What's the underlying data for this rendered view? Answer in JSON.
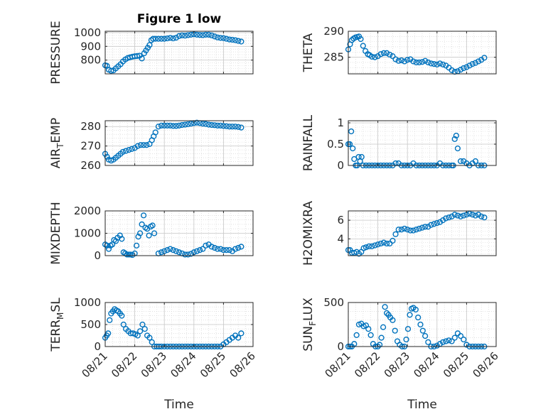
{
  "figure": {
    "title": "Figure 1 low",
    "x_tick_labels": [
      "08/21",
      "08/22",
      "08/23",
      "08/24",
      "08/25",
      "08/26"
    ],
    "xlabel": "Time",
    "marker_color": "#0072BD"
  },
  "chart_data": [
    {
      "type": "scatter",
      "title": "Figure 1 low",
      "ylabel": "PRESSURE",
      "ylabel_sub": "",
      "ylabel_tail": "",
      "xlim": [
        0,
        5
      ],
      "ylim": [
        700,
        1010
      ],
      "yticks": [
        800,
        900,
        1000
      ],
      "grid": true,
      "x": [
        0.0,
        0.06,
        0.12,
        0.2,
        0.28,
        0.36,
        0.44,
        0.52,
        0.6,
        0.68,
        0.76,
        0.84,
        0.92,
        1.0,
        1.08,
        1.16,
        1.24,
        1.32,
        1.38,
        1.44,
        1.5,
        1.56,
        1.62,
        1.7,
        1.8,
        1.9,
        2.0,
        2.1,
        2.2,
        2.3,
        2.4,
        2.5,
        2.6,
        2.7,
        2.8,
        2.9,
        3.0,
        3.1,
        3.2,
        3.3,
        3.4,
        3.5,
        3.6,
        3.7,
        3.8,
        3.9,
        4.0,
        4.1,
        4.2,
        4.3,
        4.4,
        4.5,
        4.6
      ],
      "y": [
        762,
        758,
        730,
        722,
        725,
        740,
        755,
        770,
        790,
        805,
        815,
        820,
        825,
        828,
        830,
        832,
        812,
        850,
        870,
        890,
        910,
        945,
        955,
        955,
        955,
        955,
        955,
        958,
        962,
        958,
        963,
        975,
        980,
        978,
        982,
        985,
        988,
        985,
        983,
        982,
        985,
        985,
        980,
        972,
        965,
        962,
        960,
        955,
        950,
        948,
        945,
        940,
        935
      ]
    },
    {
      "type": "scatter",
      "ylabel": "THETA",
      "ylabel_sub": "",
      "ylabel_tail": "",
      "xlim": [
        0,
        5
      ],
      "ylim": [
        281.8,
        290
      ],
      "yticks": [
        285,
        290
      ],
      "grid": true,
      "x": [
        0.0,
        0.06,
        0.12,
        0.18,
        0.24,
        0.3,
        0.36,
        0.42,
        0.5,
        0.58,
        0.66,
        0.72,
        0.8,
        0.9,
        1.0,
        1.1,
        1.2,
        1.3,
        1.4,
        1.5,
        1.6,
        1.7,
        1.8,
        1.9,
        2.0,
        2.1,
        2.2,
        2.3,
        2.4,
        2.5,
        2.6,
        2.7,
        2.8,
        2.9,
        3.0,
        3.1,
        3.2,
        3.3,
        3.4,
        3.5,
        3.6,
        3.7,
        3.8,
        3.9,
        4.0,
        4.1,
        4.2,
        4.3,
        4.4,
        4.5,
        4.6
      ],
      "y": [
        286.5,
        287.5,
        288.3,
        288.6,
        288.8,
        288.9,
        289.0,
        288.5,
        287.2,
        286.2,
        285.6,
        285.4,
        285.1,
        285.0,
        285.2,
        285.6,
        285.8,
        285.8,
        285.5,
        285.2,
        284.6,
        284.3,
        284.4,
        284.2,
        284.5,
        284.6,
        284.2,
        284.0,
        284.0,
        284.1,
        284.3,
        284.0,
        283.8,
        283.7,
        283.6,
        283.8,
        283.6,
        283.4,
        283.0,
        282.5,
        282.2,
        282.3,
        282.6,
        282.9,
        283.1,
        283.4,
        283.7,
        283.9,
        284.2,
        284.5,
        284.9
      ]
    },
    {
      "type": "scatter",
      "ylabel": "AIR",
      "ylabel_sub": "T",
      "ylabel_tail": "EMP",
      "xlim": [
        0,
        5
      ],
      "ylim": [
        260,
        283
      ],
      "yticks": [
        260,
        270,
        280
      ],
      "grid": true,
      "x": [
        0.0,
        0.06,
        0.12,
        0.2,
        0.28,
        0.36,
        0.44,
        0.52,
        0.6,
        0.7,
        0.8,
        0.9,
        1.0,
        1.1,
        1.2,
        1.3,
        1.4,
        1.5,
        1.58,
        1.64,
        1.7,
        1.8,
        1.9,
        2.0,
        2.1,
        2.2,
        2.3,
        2.4,
        2.5,
        2.6,
        2.7,
        2.8,
        2.9,
        3.0,
        3.1,
        3.2,
        3.3,
        3.4,
        3.5,
        3.6,
        3.7,
        3.8,
        3.9,
        4.0,
        4.1,
        4.2,
        4.3,
        4.4,
        4.5,
        4.6
      ],
      "y": [
        266,
        264.5,
        263,
        262.5,
        263,
        264,
        265,
        266,
        267,
        267.5,
        268,
        268.5,
        269,
        270,
        270.5,
        270.5,
        270.5,
        271,
        273,
        275,
        277,
        280,
        280.5,
        280.5,
        280.5,
        280.5,
        280.3,
        280.3,
        280.5,
        280.8,
        281,
        281.2,
        281.5,
        281.8,
        282,
        281.8,
        281.5,
        281.3,
        281,
        280.8,
        280.7,
        280.5,
        280.5,
        280.3,
        280.2,
        280,
        280,
        280,
        279.8,
        279.5
      ]
    },
    {
      "type": "scatter",
      "ylabel": "RAINFALL",
      "ylabel_sub": "",
      "ylabel_tail": "",
      "xlim": [
        0,
        5
      ],
      "ylim": [
        0,
        1.05
      ],
      "yticks": [
        0,
        0.5,
        1
      ],
      "grid": true,
      "x": [
        0.0,
        0.05,
        0.1,
        0.15,
        0.2,
        0.25,
        0.3,
        0.35,
        0.4,
        0.45,
        0.5,
        0.6,
        0.7,
        0.8,
        0.9,
        1.0,
        1.1,
        1.2,
        1.3,
        1.4,
        1.5,
        1.6,
        1.7,
        1.8,
        1.9,
        2.0,
        2.1,
        2.2,
        2.3,
        2.4,
        2.5,
        2.6,
        2.7,
        2.8,
        2.9,
        3.0,
        3.1,
        3.2,
        3.3,
        3.4,
        3.5,
        3.55,
        3.6,
        3.65,
        3.7,
        3.8,
        3.9,
        4.0,
        4.1,
        4.2,
        4.3,
        4.4,
        4.5,
        4.6
      ],
      "y": [
        0.5,
        0.5,
        0.8,
        0.4,
        0.15,
        0.0,
        0.0,
        0.2,
        0.1,
        0.2,
        0.0,
        0.0,
        0.0,
        0.0,
        0.0,
        0.0,
        0.0,
        0.0,
        0.0,
        0.0,
        0.0,
        0.05,
        0.05,
        0.0,
        0.0,
        0.0,
        0.0,
        0.05,
        0.0,
        0.0,
        0.0,
        0.0,
        0.0,
        0.0,
        0.0,
        0.0,
        0.05,
        0.0,
        0.0,
        0.0,
        0.0,
        0.0,
        0.62,
        0.7,
        0.4,
        0.1,
        0.1,
        0.05,
        0.0,
        0.05,
        0.1,
        0.0,
        0.0,
        0.0
      ]
    },
    {
      "type": "scatter",
      "ylabel": "MIXDEPTH",
      "ylabel_sub": "",
      "ylabel_tail": "",
      "xlim": [
        0,
        5
      ],
      "ylim": [
        0,
        2000
      ],
      "yticks": [
        0,
        1000,
        2000
      ],
      "grid": true,
      "x": [
        0.0,
        0.06,
        0.12,
        0.18,
        0.24,
        0.3,
        0.36,
        0.42,
        0.5,
        0.56,
        0.62,
        0.68,
        0.74,
        0.8,
        0.86,
        0.92,
        1.0,
        1.06,
        1.12,
        1.18,
        1.24,
        1.3,
        1.36,
        1.42,
        1.48,
        1.54,
        1.6,
        1.66,
        1.8,
        1.9,
        2.0,
        2.1,
        2.2,
        2.3,
        2.4,
        2.5,
        2.6,
        2.7,
        2.8,
        2.9,
        3.0,
        3.1,
        3.2,
        3.3,
        3.4,
        3.5,
        3.6,
        3.7,
        3.8,
        3.9,
        4.0,
        4.1,
        4.2,
        4.3,
        4.4,
        4.5,
        4.6
      ],
      "y": [
        500,
        450,
        300,
        450,
        500,
        700,
        650,
        800,
        900,
        750,
        150,
        100,
        50,
        50,
        50,
        30,
        100,
        450,
        850,
        1000,
        1400,
        1800,
        1250,
        1200,
        900,
        1300,
        1350,
        1000,
        100,
        150,
        200,
        250,
        300,
        250,
        200,
        150,
        100,
        50,
        50,
        80,
        150,
        200,
        250,
        300,
        450,
        500,
        400,
        350,
        300,
        300,
        250,
        250,
        250,
        200,
        300,
        350,
        400
      ]
    },
    {
      "type": "scatter",
      "ylabel": "H2OMIXRA",
      "ylabel_sub": "",
      "ylabel_tail": "",
      "xlim": [
        0,
        5
      ],
      "ylim": [
        2.2,
        7
      ],
      "yticks": [
        4,
        6
      ],
      "grid": true,
      "x": [
        0.0,
        0.06,
        0.12,
        0.2,
        0.28,
        0.36,
        0.44,
        0.52,
        0.6,
        0.7,
        0.8,
        0.9,
        1.0,
        1.1,
        1.2,
        1.3,
        1.4,
        1.5,
        1.6,
        1.7,
        1.8,
        1.9,
        2.0,
        2.1,
        2.2,
        2.3,
        2.4,
        2.5,
        2.6,
        2.7,
        2.8,
        2.9,
        3.0,
        3.1,
        3.2,
        3.3,
        3.4,
        3.5,
        3.6,
        3.7,
        3.8,
        3.9,
        4.0,
        4.1,
        4.2,
        4.3,
        4.4,
        4.5,
        4.6
      ],
      "y": [
        2.8,
        2.8,
        2.5,
        2.5,
        2.6,
        2.4,
        2.6,
        3.0,
        3.1,
        3.2,
        3.2,
        3.3,
        3.4,
        3.5,
        3.6,
        3.5,
        3.5,
        3.8,
        4.5,
        5.0,
        5.0,
        5.1,
        5.0,
        4.9,
        4.9,
        5.0,
        5.1,
        5.2,
        5.3,
        5.3,
        5.5,
        5.6,
        5.7,
        5.8,
        6.0,
        6.2,
        6.3,
        6.4,
        6.6,
        6.5,
        6.4,
        6.5,
        6.6,
        6.7,
        6.6,
        6.5,
        6.6,
        6.4,
        6.3
      ]
    },
    {
      "type": "scatter",
      "ylabel": "TERR",
      "ylabel_sub": "M",
      "ylabel_tail": "SL",
      "xlim": [
        0,
        5
      ],
      "ylim": [
        0,
        1000
      ],
      "yticks": [
        0,
        500,
        1000
      ],
      "grid": true,
      "x": [
        0.0,
        0.05,
        0.1,
        0.15,
        0.2,
        0.26,
        0.32,
        0.38,
        0.44,
        0.5,
        0.56,
        0.62,
        0.7,
        0.78,
        0.86,
        0.94,
        1.02,
        1.1,
        1.18,
        1.26,
        1.34,
        1.42,
        1.5,
        1.58,
        1.66,
        1.74,
        1.82,
        1.9,
        2.0,
        2.1,
        2.2,
        2.3,
        2.4,
        2.5,
        2.6,
        2.7,
        2.8,
        2.9,
        3.0,
        3.1,
        3.2,
        3.3,
        3.4,
        3.5,
        3.6,
        3.7,
        3.8,
        3.9,
        4.0,
        4.1,
        4.2,
        4.3,
        4.4,
        4.5,
        4.6
      ],
      "y": [
        200,
        250,
        300,
        600,
        750,
        800,
        850,
        820,
        800,
        750,
        700,
        500,
        400,
        350,
        300,
        300,
        280,
        250,
        350,
        500,
        400,
        250,
        200,
        100,
        0,
        0,
        0,
        0,
        0,
        0,
        0,
        0,
        0,
        0,
        0,
        0,
        0,
        0,
        0,
        0,
        0,
        0,
        0,
        0,
        0,
        0,
        0,
        0,
        50,
        100,
        150,
        200,
        250,
        200,
        300
      ]
    },
    {
      "type": "scatter",
      "ylabel": "SUN",
      "ylabel_sub": "F",
      "ylabel_tail": "LUX",
      "xlim": [
        0,
        5
      ],
      "ylim": [
        0,
        500
      ],
      "yticks": [
        0,
        500
      ],
      "grid": true,
      "x": [
        0.0,
        0.06,
        0.12,
        0.2,
        0.28,
        0.36,
        0.44,
        0.52,
        0.6,
        0.68,
        0.76,
        0.84,
        0.92,
        1.0,
        1.06,
        1.12,
        1.18,
        1.24,
        1.3,
        1.36,
        1.42,
        1.5,
        1.58,
        1.66,
        1.74,
        1.82,
        1.9,
        1.96,
        2.02,
        2.08,
        2.14,
        2.2,
        2.28,
        2.36,
        2.44,
        2.52,
        2.6,
        2.7,
        2.8,
        2.9,
        3.0,
        3.1,
        3.2,
        3.3,
        3.4,
        3.5,
        3.6,
        3.7,
        3.8,
        3.9,
        4.0,
        4.1,
        4.2,
        4.3,
        4.4,
        4.5,
        4.6
      ],
      "y": [
        0,
        0,
        0,
        30,
        130,
        250,
        260,
        230,
        240,
        200,
        130,
        30,
        0,
        0,
        20,
        100,
        220,
        450,
        380,
        360,
        330,
        300,
        180,
        60,
        20,
        0,
        0,
        80,
        200,
        360,
        430,
        440,
        420,
        330,
        250,
        180,
        120,
        50,
        0,
        0,
        10,
        30,
        50,
        60,
        70,
        60,
        100,
        150,
        120,
        80,
        20,
        0,
        0,
        0,
        0,
        0,
        0
      ]
    }
  ]
}
